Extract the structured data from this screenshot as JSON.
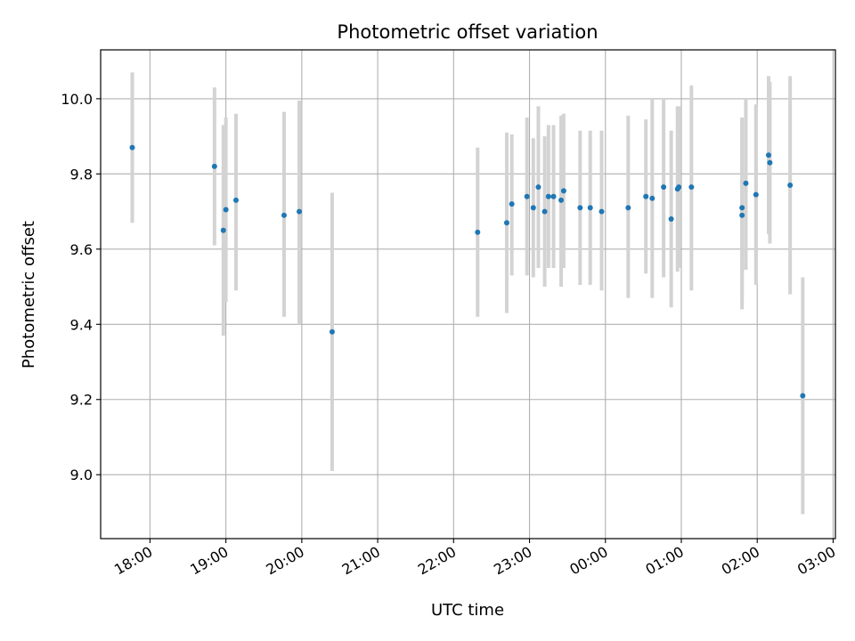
{
  "chart_data": {
    "type": "scatter",
    "title": "Photometric offset variation",
    "xlabel": "UTC time",
    "ylabel": "Photometric offset",
    "grid": true,
    "x_ticks": [
      "18:00",
      "19:00",
      "20:00",
      "21:00",
      "22:00",
      "23:00",
      "00:00",
      "01:00",
      "02:00",
      "03:00"
    ],
    "y_ticks": [
      "9.0",
      "9.2",
      "9.4",
      "9.6",
      "9.8",
      "10.0"
    ],
    "xlim_hours": [
      17.35,
      27.03
    ],
    "ylim": [
      8.83,
      10.13
    ],
    "colors": {
      "points": "#1f77b4",
      "error_bars": "#d3d3d3",
      "grid": "#b0b0b0"
    },
    "series": [
      {
        "points": [
          {
            "t": "17:46",
            "y": 9.87,
            "lo": 9.67,
            "hi": 10.07
          },
          {
            "t": "18:51",
            "y": 9.82,
            "lo": 9.61,
            "hi": 10.03
          },
          {
            "t": "18:58",
            "y": 9.65,
            "lo": 9.37,
            "hi": 9.93
          },
          {
            "t": "19:00",
            "y": 9.705,
            "lo": 9.46,
            "hi": 9.95
          },
          {
            "t": "19:08",
            "y": 9.73,
            "lo": 9.49,
            "hi": 9.96
          },
          {
            "t": "19:46",
            "y": 9.69,
            "lo": 9.42,
            "hi": 9.965
          },
          {
            "t": "19:58",
            "y": 9.7,
            "lo": 9.4,
            "hi": 9.995
          },
          {
            "t": "20:24",
            "y": 9.38,
            "lo": 9.01,
            "hi": 9.75
          },
          {
            "t": "22:19",
            "y": 9.645,
            "lo": 9.42,
            "hi": 9.87
          },
          {
            "t": "22:42",
            "y": 9.67,
            "lo": 9.43,
            "hi": 9.91
          },
          {
            "t": "22:46",
            "y": 9.72,
            "lo": 9.53,
            "hi": 9.905
          },
          {
            "t": "22:58",
            "y": 9.74,
            "lo": 9.53,
            "hi": 9.95
          },
          {
            "t": "23:03",
            "y": 9.71,
            "lo": 9.525,
            "hi": 9.895
          },
          {
            "t": "23:07",
            "y": 9.765,
            "lo": 9.55,
            "hi": 9.98
          },
          {
            "t": "23:12",
            "y": 9.7,
            "lo": 9.5,
            "hi": 9.9
          },
          {
            "t": "23:15",
            "y": 9.74,
            "lo": 9.55,
            "hi": 9.93
          },
          {
            "t": "23:19",
            "y": 9.74,
            "lo": 9.55,
            "hi": 9.93
          },
          {
            "t": "23:25",
            "y": 9.73,
            "lo": 9.5,
            "hi": 9.955
          },
          {
            "t": "23:27",
            "y": 9.755,
            "lo": 9.55,
            "hi": 9.96
          },
          {
            "t": "23:40",
            "y": 9.71,
            "lo": 9.505,
            "hi": 9.915
          },
          {
            "t": "23:48",
            "y": 9.71,
            "lo": 9.505,
            "hi": 9.915
          },
          {
            "t": "23:57",
            "y": 9.7,
            "lo": 9.49,
            "hi": 9.915
          },
          {
            "t": "00:18",
            "y": 9.71,
            "lo": 9.47,
            "hi": 9.955
          },
          {
            "t": "00:32",
            "y": 9.74,
            "lo": 9.535,
            "hi": 9.945
          },
          {
            "t": "00:37",
            "y": 9.735,
            "lo": 9.47,
            "hi": 10.0
          },
          {
            "t": "00:46",
            "y": 9.765,
            "lo": 9.525,
            "hi": 10.0
          },
          {
            "t": "00:52",
            "y": 9.68,
            "lo": 9.445,
            "hi": 9.915
          },
          {
            "t": "00:57",
            "y": 9.76,
            "lo": 9.54,
            "hi": 9.98
          },
          {
            "t": "00:58",
            "y": 9.765,
            "lo": 9.55,
            "hi": 9.98
          },
          {
            "t": "01:08",
            "y": 9.765,
            "lo": 9.49,
            "hi": 10.035
          },
          {
            "t": "01:48",
            "y": 9.69,
            "lo": 9.44,
            "hi": 9.94
          },
          {
            "t": "01:48",
            "y": 9.71,
            "lo": 9.47,
            "hi": 9.95
          },
          {
            "t": "01:51",
            "y": 9.775,
            "lo": 9.545,
            "hi": 10.0
          },
          {
            "t": "01:59",
            "y": 9.745,
            "lo": 9.505,
            "hi": 9.985
          },
          {
            "t": "02:09",
            "y": 9.85,
            "lo": 9.64,
            "hi": 10.06
          },
          {
            "t": "02:10",
            "y": 9.83,
            "lo": 9.615,
            "hi": 10.045
          },
          {
            "t": "02:26",
            "y": 9.77,
            "lo": 9.48,
            "hi": 10.06
          },
          {
            "t": "02:36",
            "y": 9.21,
            "lo": 8.895,
            "hi": 9.525
          }
        ]
      }
    ]
  }
}
